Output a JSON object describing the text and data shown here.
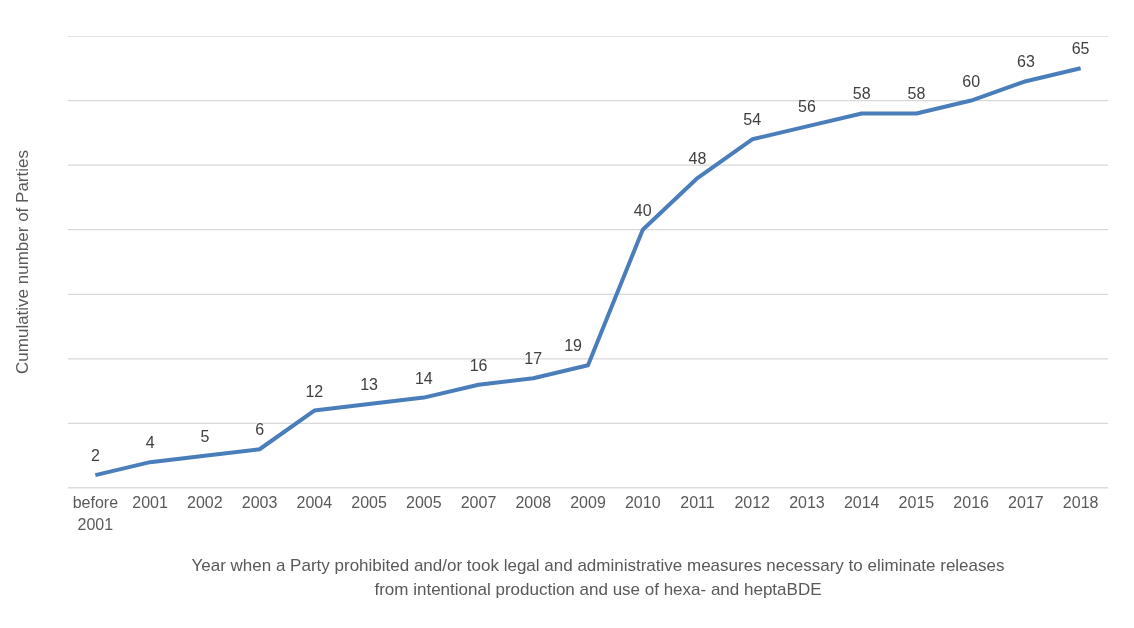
{
  "chart_data": {
    "type": "line",
    "xlabel": "Year when a Party prohibited and/or took legal and administrative measures necessary to eliminate releases from intentional production and use of hexa- and heptaBDE",
    "ylabel": "Cumulative number of Parties",
    "categories": [
      "before 2001",
      "2001",
      "2002",
      "2003",
      "2004",
      "2005",
      "2005",
      "2007",
      "2008",
      "2009",
      "2010",
      "2011",
      "2012",
      "2013",
      "2014",
      "2015",
      "2016",
      "2017",
      "2018"
    ],
    "series": [
      {
        "color": "#4a7ebb",
        "values": [
          2,
          4,
          5,
          6,
          12,
          13,
          14,
          16,
          17,
          19,
          40,
          48,
          54,
          56,
          58,
          58,
          60,
          63,
          65
        ]
      }
    ],
    "ylim": [
      0,
      70
    ],
    "yticks": [
      {
        "value": 0,
        "label": null
      },
      {
        "value": 10,
        "label": null
      },
      {
        "value": 20,
        "label": null
      },
      {
        "value": 30,
        "label": null
      },
      {
        "value": 40,
        "label": null
      },
      {
        "value": 50,
        "label": null
      },
      {
        "value": 60,
        "label": null
      },
      {
        "value": 70,
        "label": null
      }
    ],
    "tick_labels": "x",
    "grid": "y",
    "data_labels": true,
    "marker": "none",
    "line_style": "solid",
    "legend": false
  }
}
